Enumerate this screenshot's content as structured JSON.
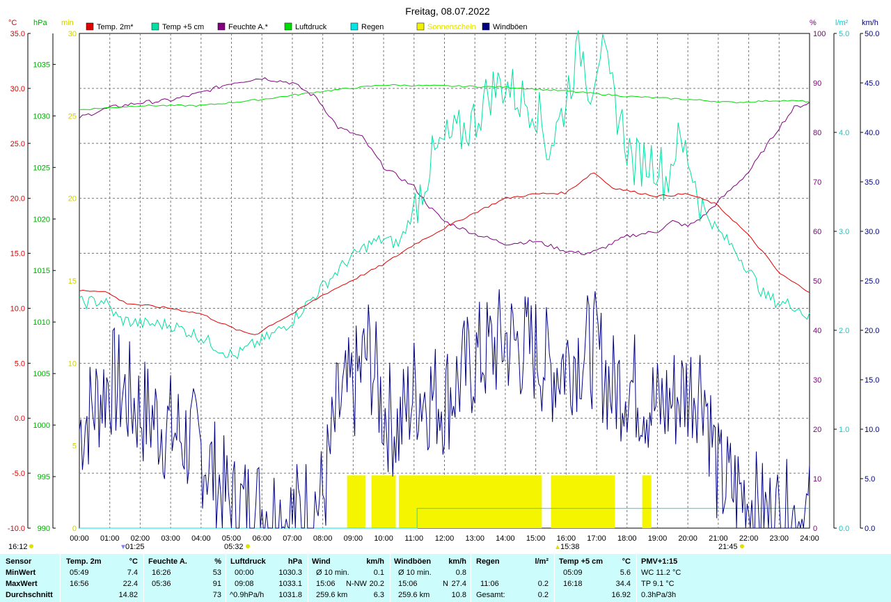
{
  "title": "Freitag, 08.07.2022",
  "legend": [
    {
      "label": "Temp. 2m*",
      "color": "#e00000"
    },
    {
      "label": "Temp +5 cm",
      "color": "#00e0a0"
    },
    {
      "label": "Feuchte A.*",
      "color": "#800080"
    },
    {
      "label": "Luftdruck",
      "color": "#00dd00"
    },
    {
      "label": "Regen",
      "color": "#00e5e5"
    },
    {
      "label": "Sonnenschein",
      "color": "#f0f000"
    },
    {
      "label": "Windböen",
      "color": "#000080"
    }
  ],
  "axes": {
    "temp": {
      "unit": "°C",
      "color": "#e00000",
      "ticks": [
        "35.0",
        "30.0",
        "25.0",
        "20.0",
        "15.0",
        "10.0",
        "5.0",
        "0.0",
        "-5.0",
        "-10.0"
      ],
      "range": [
        -10,
        35
      ]
    },
    "pressure": {
      "unit": "hPa",
      "color": "#00aa00",
      "ticks": [
        "1035",
        "1030",
        "1025",
        "1020",
        "1015",
        "1010",
        "1005",
        "1000",
        "995",
        "990"
      ],
      "range": [
        990,
        1038
      ]
    },
    "sun": {
      "unit": "min",
      "color": "#d0d000",
      "ticks": [
        "30",
        "25",
        "20",
        "15",
        "10",
        "5",
        "0"
      ],
      "range": [
        0,
        30
      ]
    },
    "humidity": {
      "unit": "%",
      "color": "#800080",
      "ticks": [
        "100",
        "90",
        "80",
        "70",
        "60",
        "50",
        "40",
        "30",
        "20",
        "10",
        "0"
      ],
      "range": [
        0,
        100
      ]
    },
    "rain": {
      "unit": "l/m²",
      "color": "#00d0d0",
      "ticks": [
        "5.0",
        "4.0",
        "3.0",
        "2.0",
        "1.0",
        "0.0"
      ],
      "range": [
        0,
        5
      ]
    },
    "wind": {
      "unit": "km/h",
      "color": "#000080",
      "ticks": [
        "50.0",
        "45.0",
        "40.0",
        "35.0",
        "30.0",
        "25.0",
        "20.0",
        "15.0",
        "10.0",
        "5.0",
        "0.0"
      ],
      "range": [
        0,
        50
      ]
    }
  },
  "x_labels": [
    "00:00",
    "01:00",
    "02:00",
    "03:00",
    "04:00",
    "05:00",
    "06:00",
    "07:00",
    "08:00",
    "09:00",
    "10:00",
    "11:00",
    "12:00",
    "13:00",
    "14:00",
    "15:00",
    "16:00",
    "17:00",
    "18:00",
    "19:00",
    "20:00",
    "21:00",
    "22:00",
    "23:00",
    "24:00"
  ],
  "markers": {
    "corner_time": "16:12",
    "moonrise": "01:25",
    "sunrise": "05:32",
    "moonset": "15:38",
    "sunset": "21:45"
  },
  "chart_data": {
    "type": "line",
    "x_unit": "hours",
    "series": [
      {
        "name": "Temp. 2m*",
        "axis": "temp",
        "points": [
          [
            0,
            11.6
          ],
          [
            0.8,
            11.6
          ],
          [
            1.5,
            10.5
          ],
          [
            2,
            10.3
          ],
          [
            3,
            10.0
          ],
          [
            4,
            9.5
          ],
          [
            4.7,
            8.6
          ],
          [
            5.3,
            7.9
          ],
          [
            5.8,
            7.6
          ],
          [
            6.3,
            8.5
          ],
          [
            7,
            9.5
          ],
          [
            8,
            11.2
          ],
          [
            9,
            12.6
          ],
          [
            10,
            14.0
          ],
          [
            11,
            15.8
          ],
          [
            12,
            17.3
          ],
          [
            13,
            18.7
          ],
          [
            14,
            20.0
          ],
          [
            15,
            20.4
          ],
          [
            16,
            20.5
          ],
          [
            16.9,
            22.4
          ],
          [
            17.5,
            21.0
          ],
          [
            18,
            20.7
          ],
          [
            19,
            20.2
          ],
          [
            20,
            20.4
          ],
          [
            20.9,
            19.5
          ],
          [
            21.5,
            18.0
          ],
          [
            22,
            16.6
          ],
          [
            22.5,
            15.0
          ],
          [
            23,
            13.2
          ],
          [
            23.5,
            12.3
          ],
          [
            24,
            11.5
          ]
        ]
      },
      {
        "name": "Temp +5 cm",
        "axis": "temp",
        "points": [
          [
            0,
            10.5
          ],
          [
            0.8,
            10.7
          ],
          [
            1.3,
            9.0
          ],
          [
            2,
            8.6
          ],
          [
            3,
            8.5
          ],
          [
            4,
            7.4
          ],
          [
            4.5,
            6.5
          ],
          [
            5.1,
            5.6
          ],
          [
            5.6,
            6.5
          ],
          [
            6.3,
            7.5
          ],
          [
            7,
            8.9
          ],
          [
            8,
            12.0
          ],
          [
            8.8,
            14.3
          ],
          [
            9.5,
            15.8
          ],
          [
            10,
            16.3
          ],
          [
            10.5,
            15.8
          ],
          [
            11,
            19.0
          ],
          [
            11.5,
            23.0
          ],
          [
            12,
            25.0
          ],
          [
            12.5,
            25.8
          ],
          [
            13,
            27.2
          ],
          [
            13.5,
            29.8
          ],
          [
            14,
            30.5
          ],
          [
            14.5,
            29.0
          ],
          [
            15,
            28.6
          ],
          [
            15.4,
            24.5
          ],
          [
            15.8,
            27.0
          ],
          [
            16.2,
            31.5
          ],
          [
            16.5,
            33.8
          ],
          [
            16.8,
            30.0
          ],
          [
            17.1,
            34.0
          ],
          [
            17.4,
            30.5
          ],
          [
            17.8,
            27.0
          ],
          [
            18.2,
            23.0
          ],
          [
            18.5,
            23.5
          ],
          [
            19,
            23.5
          ],
          [
            19.3,
            21.5
          ],
          [
            19.6,
            25.0
          ],
          [
            20,
            24.0
          ],
          [
            20.5,
            19.0
          ],
          [
            21,
            17.0
          ],
          [
            21.5,
            15.5
          ],
          [
            22,
            13.5
          ],
          [
            22.5,
            11.2
          ],
          [
            23,
            10.5
          ],
          [
            23.5,
            10.3
          ],
          [
            24,
            9.1
          ]
        ]
      },
      {
        "name": "Feuchte A.*",
        "axis": "humidity",
        "points": [
          [
            0,
            83
          ],
          [
            1,
            85
          ],
          [
            2,
            86
          ],
          [
            3,
            86.5
          ],
          [
            4,
            88
          ],
          [
            5,
            90
          ],
          [
            6,
            91
          ],
          [
            7,
            90
          ],
          [
            7.8,
            87
          ],
          [
            8.5,
            81
          ],
          [
            9.3,
            79
          ],
          [
            10,
            73
          ],
          [
            11,
            69
          ],
          [
            11.5,
            65
          ],
          [
            12,
            62
          ],
          [
            13,
            59.5
          ],
          [
            14,
            57.5
          ],
          [
            15,
            58
          ],
          [
            16,
            56
          ],
          [
            16.6,
            55.5
          ],
          [
            17,
            56
          ],
          [
            18,
            59
          ],
          [
            19,
            60
          ],
          [
            19.5,
            62
          ],
          [
            20,
            61
          ],
          [
            20.5,
            63
          ],
          [
            21,
            66
          ],
          [
            22,
            72
          ],
          [
            23,
            81
          ],
          [
            23.5,
            85
          ],
          [
            24,
            86
          ]
        ]
      },
      {
        "name": "Luftdruck",
        "axis": "pressure",
        "points": [
          [
            0,
            1030.6
          ],
          [
            2,
            1031.0
          ],
          [
            4,
            1031.0
          ],
          [
            6,
            1031.6
          ],
          [
            8,
            1032.4
          ],
          [
            10,
            1033.0
          ],
          [
            12,
            1032.9
          ],
          [
            14,
            1032.8
          ],
          [
            16,
            1032.4
          ],
          [
            18,
            1031.9
          ],
          [
            20,
            1031.6
          ],
          [
            21.5,
            1031.3
          ],
          [
            23,
            1031.5
          ],
          [
            24,
            1031.4
          ]
        ]
      },
      {
        "name": "Regen",
        "axis": "rain",
        "points": [
          [
            0,
            0
          ],
          [
            11.1,
            0
          ],
          [
            11.1,
            0.2
          ],
          [
            24,
            0.2
          ]
        ]
      },
      {
        "name": "Windböen",
        "axis": "wind",
        "points": [
          [
            0,
            10
          ],
          [
            1,
            15
          ],
          [
            2,
            12
          ],
          [
            3,
            10
          ],
          [
            4,
            8
          ],
          [
            5,
            2
          ],
          [
            6,
            2
          ],
          [
            7,
            1
          ],
          [
            8,
            3
          ],
          [
            8.5,
            12
          ],
          [
            9,
            14
          ],
          [
            9.5,
            18
          ],
          [
            10,
            12
          ],
          [
            10.5,
            10
          ],
          [
            11,
            14
          ],
          [
            12,
            13
          ],
          [
            13,
            17
          ],
          [
            14,
            19
          ],
          [
            15,
            18
          ],
          [
            15.5,
            16
          ],
          [
            16,
            17
          ],
          [
            16.5,
            18
          ],
          [
            17,
            18
          ],
          [
            17.5,
            14
          ],
          [
            18,
            15
          ],
          [
            19,
            12
          ],
          [
            20,
            14
          ],
          [
            20.5,
            15
          ],
          [
            21,
            5
          ],
          [
            21.5,
            4
          ],
          [
            22,
            3
          ],
          [
            22.5,
            1
          ],
          [
            23,
            1
          ],
          [
            24,
            1
          ]
        ]
      }
    ],
    "sunshine_intervals": [
      [
        8.8,
        9.4
      ],
      [
        9.6,
        10.4
      ],
      [
        10.5,
        15.2
      ],
      [
        15.5,
        17.6
      ],
      [
        18.5,
        18.8
      ]
    ],
    "sunshine_level_min": 3.2,
    "xlim": [
      0,
      24
    ]
  },
  "summary": {
    "headers": {
      "sensor": "Sensor",
      "temp": "Temp. 2m",
      "temp_u": "°C",
      "hum": "Feuchte A.",
      "hum_u": "%",
      "press": "Luftdruck",
      "press_u": "hPa",
      "wind": "Wind",
      "wind_u": "km/h",
      "gust": "Windböen",
      "gust_u": "km/h",
      "rain": "Regen",
      "rain_u": "l/m²",
      "t5": "Temp +5 cm",
      "t5_u": "°C",
      "pmv": "PMV+1:15"
    },
    "rows": {
      "min_label": "MinWert",
      "max_label": "MaxWert",
      "avg_label": "Durchschnitt"
    },
    "temp": {
      "min_t": "05:49",
      "min_v": "7.4",
      "max_t": "16:56",
      "max_v": "22.4",
      "avg": "14.82"
    },
    "hum": {
      "min_t": "16:26",
      "min_v": "53",
      "max_t": "05:36",
      "max_v": "91",
      "avg": "73"
    },
    "press": {
      "min_t": "00:00",
      "min_v": "1030.3",
      "max_t": "09:08",
      "max_v": "1033.1",
      "avg_t": "^0.9hPa/h",
      "avg": "1031.8"
    },
    "wind": {
      "r1_l": "Ø 10 min.",
      "r1_v": "0.1",
      "r2_t": "15:06",
      "r2_d": "N-NW",
      "r2_v": "20.2",
      "r3_l": "259.6 km",
      "r3_v": "6.3"
    },
    "gust": {
      "r1_l": "Ø 10 min.",
      "r1_v": "0.8",
      "r2_t": "15:06",
      "r2_d": "N",
      "r2_v": "27.4",
      "r3_l": "259.6 km",
      "r3_v": "10.8"
    },
    "rain": {
      "r2_t": "11:06",
      "r2_v": "0.2",
      "r3_l": "Gesamt:",
      "r3_v": "0.2"
    },
    "t5": {
      "min_t": "05:09",
      "min_v": "5.6",
      "max_t": "16:18",
      "max_v": "34.4",
      "avg": "16.92"
    },
    "pmv": {
      "r1": "WC 11.2 °C",
      "r2": "TP 9.1 °C",
      "r3": "0.3hPa/3h"
    }
  }
}
